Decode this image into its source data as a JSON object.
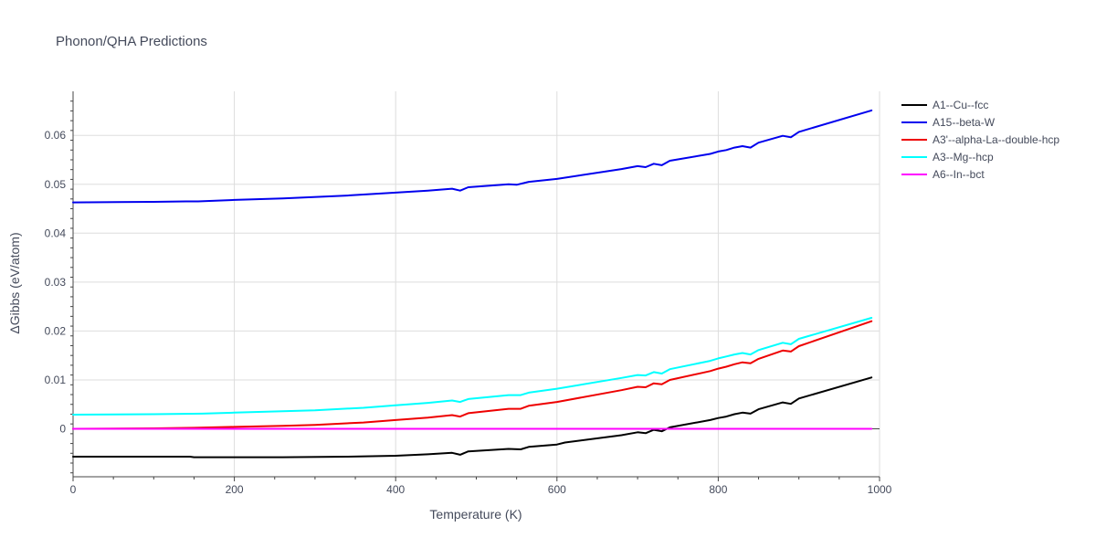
{
  "chart_data": {
    "type": "line",
    "title": "Phonon/QHA Predictions",
    "xlabel": "Temperature (K)",
    "ylabel": "ΔGibbs (eV/atom)",
    "xlim": [
      0,
      1000
    ],
    "ylim": [
      -0.0098,
      0.069
    ],
    "xticks": [
      0,
      200,
      400,
      600,
      800,
      1000
    ],
    "xtick_labels": [
      "0",
      "200",
      "400",
      "600",
      "800",
      "1000"
    ],
    "yticks": [
      0,
      0.01,
      0.02,
      0.03,
      0.04,
      0.05,
      0.06
    ],
    "ytick_labels": [
      "0",
      "0.01",
      "0.02",
      "0.03",
      "0.04",
      "0.05",
      "0.06"
    ],
    "grid": true,
    "legend_position": "top-right, outside plot",
    "series": [
      {
        "name": "A1--Cu--fcc",
        "color": "#000000",
        "x": [
          0,
          100,
          145,
          150,
          200,
          260,
          340,
          400,
          440,
          470,
          480,
          490,
          540,
          555,
          565,
          600,
          610,
          680,
          700,
          710,
          720,
          730,
          740,
          790,
          800,
          810,
          820,
          830,
          840,
          850,
          880,
          890,
          900,
          990
        ],
        "y": [
          -0.0057,
          -0.0057,
          -0.0057,
          -0.0058,
          -0.0058,
          -0.0058,
          -0.0057,
          -0.0055,
          -0.0052,
          -0.0049,
          -0.0053,
          -0.0046,
          -0.0041,
          -0.0042,
          -0.0037,
          -0.0032,
          -0.0028,
          -0.0013,
          -0.0007,
          -0.0009,
          -0.0002,
          -0.0005,
          0.0003,
          0.0018,
          0.0022,
          0.0025,
          0.003,
          0.0033,
          0.0031,
          0.004,
          0.0054,
          0.0051,
          0.0062,
          0.0105
        ]
      },
      {
        "name": "A15--beta-W",
        "color": "#0000ee",
        "x": [
          0,
          100,
          140,
          155,
          200,
          260,
          340,
          400,
          440,
          470,
          480,
          490,
          540,
          550,
          565,
          600,
          680,
          700,
          710,
          720,
          730,
          740,
          790,
          800,
          810,
          820,
          830,
          840,
          850,
          880,
          890,
          900,
          990
        ],
        "y": [
          0.0463,
          0.0464,
          0.0465,
          0.0465,
          0.0468,
          0.0471,
          0.0477,
          0.0483,
          0.0487,
          0.0491,
          0.0487,
          0.0494,
          0.05,
          0.0499,
          0.0505,
          0.0511,
          0.0531,
          0.0537,
          0.0535,
          0.0542,
          0.0539,
          0.0548,
          0.0562,
          0.0567,
          0.057,
          0.0575,
          0.0578,
          0.0575,
          0.0585,
          0.0599,
          0.0596,
          0.0607,
          0.0651
        ]
      },
      {
        "name": "A3'--alpha-La--double-hcp",
        "color": "#ee0000",
        "x": [
          0,
          100,
          150,
          200,
          260,
          300,
          360,
          400,
          440,
          470,
          480,
          490,
          540,
          555,
          565,
          600,
          680,
          700,
          710,
          720,
          730,
          740,
          790,
          800,
          810,
          820,
          830,
          840,
          850,
          880,
          890,
          900,
          990
        ],
        "y": [
          0.0,
          0.0001,
          0.0002,
          0.0004,
          0.0006,
          0.0008,
          0.0013,
          0.0018,
          0.0023,
          0.0028,
          0.0025,
          0.0032,
          0.0041,
          0.0041,
          0.0047,
          0.0055,
          0.0079,
          0.0086,
          0.0085,
          0.0093,
          0.0091,
          0.01,
          0.0118,
          0.0123,
          0.0127,
          0.0132,
          0.0136,
          0.0134,
          0.0143,
          0.016,
          0.0158,
          0.0169,
          0.022
        ]
      },
      {
        "name": "A3--Mg--hcp",
        "color": "#00ffff",
        "x": [
          0,
          100,
          160,
          200,
          260,
          300,
          360,
          400,
          440,
          470,
          480,
          490,
          540,
          555,
          565,
          600,
          680,
          700,
          710,
          720,
          730,
          740,
          790,
          800,
          810,
          820,
          830,
          840,
          850,
          880,
          890,
          900,
          990
        ],
        "y": [
          0.0029,
          0.003,
          0.0031,
          0.0033,
          0.0036,
          0.0038,
          0.0043,
          0.0048,
          0.0053,
          0.0058,
          0.0055,
          0.0061,
          0.0069,
          0.0069,
          0.0074,
          0.0082,
          0.0104,
          0.011,
          0.0109,
          0.0116,
          0.0113,
          0.0122,
          0.0139,
          0.0144,
          0.0148,
          0.0152,
          0.0155,
          0.0152,
          0.0161,
          0.0176,
          0.0173,
          0.0184,
          0.0227
        ]
      },
      {
        "name": "A6--In--bct",
        "color": "#ff00ff",
        "x": [
          0,
          990
        ],
        "y": [
          0.0,
          0.0
        ]
      }
    ]
  }
}
